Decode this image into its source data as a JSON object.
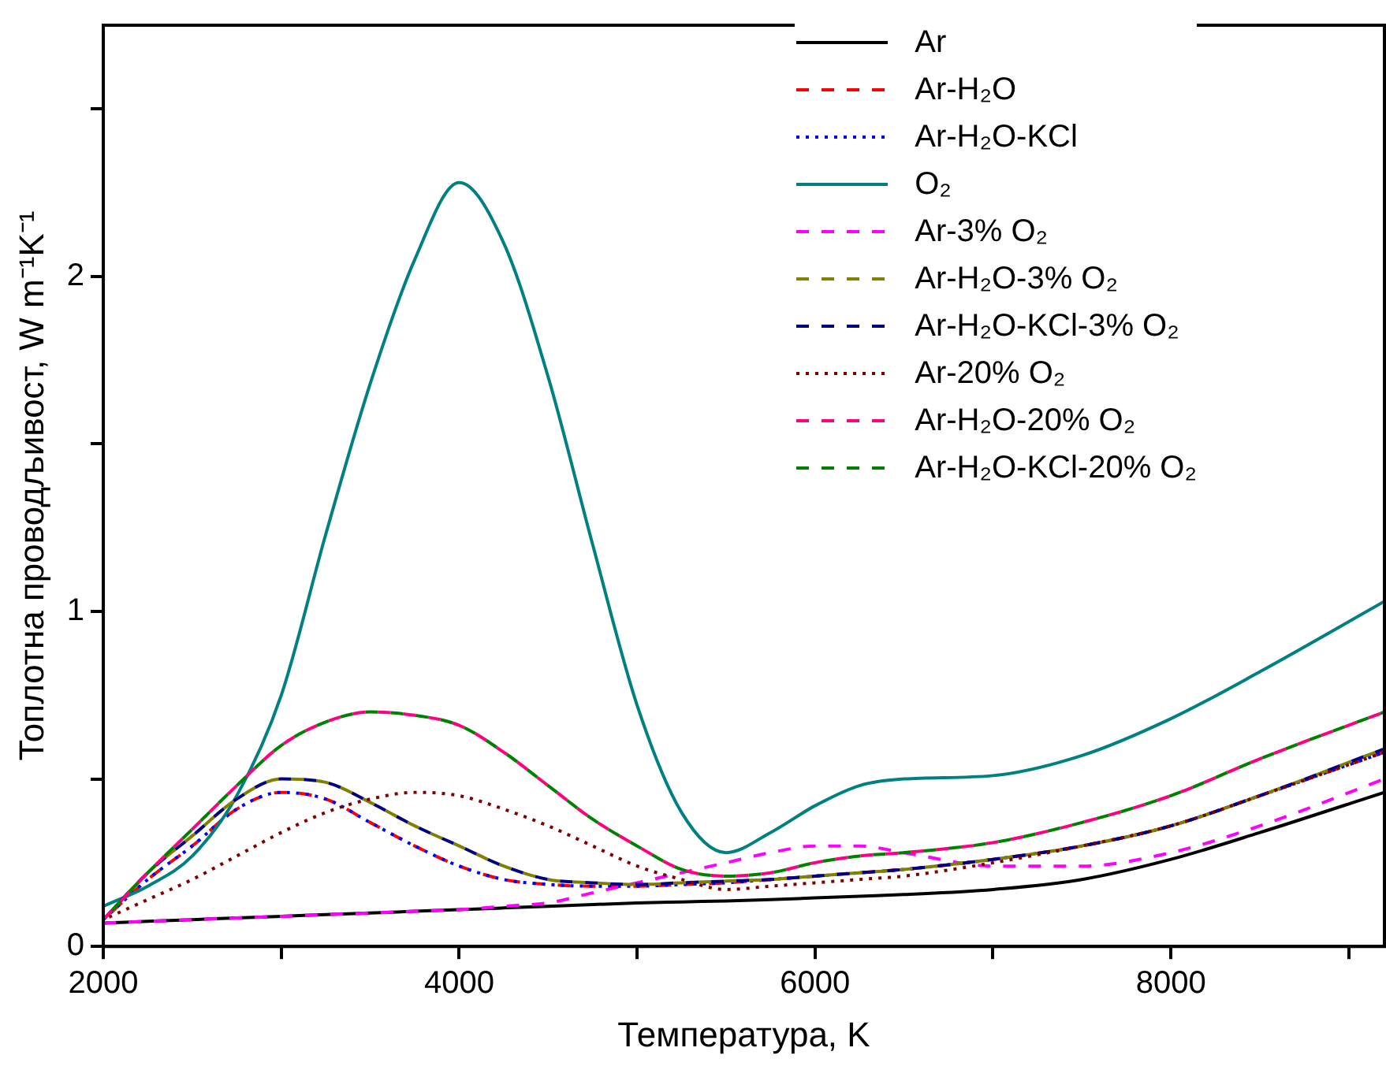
{
  "chart_data": {
    "type": "line",
    "xlabel": "Температура, K",
    "ylabel": "Топлотна проводљивост, W m⁻¹K⁻¹",
    "xlim": [
      2000,
      9200
    ],
    "ylim": [
      0,
      2.75
    ],
    "xticks": [
      2000,
      {
        "value": 3000,
        "label": null
      },
      4000,
      {
        "value": 5000,
        "label": null
      },
      6000,
      {
        "value": 7000,
        "label": null
      },
      8000,
      {
        "value": 9000,
        "label": null
      }
    ],
    "yticks": [
      0,
      {
        "value": 0.5,
        "label": null
      },
      1,
      {
        "value": 1.5,
        "label": null
      },
      2,
      {
        "value": 2.5,
        "label": null
      }
    ],
    "grid": false,
    "legend": "top right",
    "marker": "none",
    "x": [
      2000,
      2250,
      2500,
      2750,
      3000,
      3250,
      3500,
      3750,
      4000,
      4250,
      4500,
      4750,
      5000,
      5250,
      5500,
      5750,
      6000,
      6250,
      6500,
      7000,
      7500,
      8000,
      8500,
      9200
    ],
    "series": [
      {
        "name": "Ar",
        "color": "#000000",
        "line_style": "solid",
        "values": [
          0.07,
          0.075,
          0.08,
          0.085,
          0.09,
          0.095,
          0.1,
          0.105,
          0.11,
          0.115,
          0.12,
          0.125,
          0.13,
          0.133,
          0.136,
          0.14,
          0.145,
          0.15,
          0.155,
          0.17,
          0.2,
          0.26,
          0.34,
          0.46
        ]
      },
      {
        "name": "Ar-H₂O",
        "color": "#ff0000",
        "line_style": "dashed",
        "values": [
          0.08,
          0.2,
          0.3,
          0.41,
          0.46,
          0.44,
          0.37,
          0.3,
          0.24,
          0.2,
          0.185,
          0.18,
          0.18,
          0.185,
          0.19,
          0.2,
          0.21,
          0.22,
          0.23,
          0.26,
          0.3,
          0.36,
          0.45,
          0.58
        ]
      },
      {
        "name": "Ar-H₂O-KCl",
        "color": "#0000ff",
        "line_style": "dotted",
        "values": [
          0.08,
          0.2,
          0.3,
          0.41,
          0.46,
          0.44,
          0.37,
          0.3,
          0.24,
          0.2,
          0.185,
          0.18,
          0.18,
          0.185,
          0.19,
          0.2,
          0.21,
          0.22,
          0.23,
          0.26,
          0.3,
          0.36,
          0.45,
          0.58
        ]
      },
      {
        "name": "O₂",
        "color": "#008080",
        "line_style": "solid",
        "values": [
          0.12,
          0.18,
          0.27,
          0.45,
          0.75,
          1.23,
          1.68,
          2.05,
          2.28,
          2.1,
          1.7,
          1.2,
          0.72,
          0.4,
          0.28,
          0.34,
          0.42,
          0.48,
          0.5,
          0.51,
          0.57,
          0.68,
          0.82,
          1.03
        ]
      },
      {
        "name": "Ar-3% O₂",
        "color": "#ff00ff",
        "line_style": "dashed",
        "values": [
          0.07,
          0.075,
          0.08,
          0.085,
          0.09,
          0.095,
          0.1,
          0.105,
          0.11,
          0.12,
          0.13,
          0.16,
          0.19,
          0.22,
          0.25,
          0.28,
          0.3,
          0.3,
          0.28,
          0.24,
          0.24,
          0.28,
          0.36,
          0.5
        ]
      },
      {
        "name": "Ar-H₂O-3% O₂",
        "color": "#808000",
        "line_style": "dashed",
        "values": [
          0.08,
          0.22,
          0.33,
          0.44,
          0.5,
          0.49,
          0.43,
          0.36,
          0.3,
          0.24,
          0.2,
          0.19,
          0.185,
          0.19,
          0.195,
          0.2,
          0.21,
          0.22,
          0.23,
          0.26,
          0.3,
          0.36,
          0.45,
          0.59
        ]
      },
      {
        "name": "Ar-H₂O-KCl-3% O₂",
        "color": "#000080",
        "line_style": "dashed",
        "values": [
          0.08,
          0.22,
          0.33,
          0.44,
          0.5,
          0.49,
          0.43,
          0.36,
          0.3,
          0.24,
          0.2,
          0.19,
          0.185,
          0.19,
          0.195,
          0.2,
          0.21,
          0.22,
          0.23,
          0.26,
          0.3,
          0.36,
          0.45,
          0.59
        ]
      },
      {
        "name": "Ar-20% O₂",
        "color": "#800000",
        "line_style": "dotted",
        "values": [
          0.08,
          0.14,
          0.2,
          0.27,
          0.34,
          0.4,
          0.44,
          0.46,
          0.45,
          0.41,
          0.36,
          0.3,
          0.24,
          0.2,
          0.17,
          0.18,
          0.19,
          0.2,
          0.21,
          0.25,
          0.3,
          0.36,
          0.45,
          0.58
        ]
      },
      {
        "name": "Ar-H₂O-20% O₂",
        "color": "#ff0080",
        "line_style": "dashed",
        "values": [
          0.08,
          0.22,
          0.35,
          0.48,
          0.6,
          0.67,
          0.7,
          0.69,
          0.66,
          0.58,
          0.48,
          0.38,
          0.3,
          0.23,
          0.21,
          0.22,
          0.25,
          0.27,
          0.28,
          0.31,
          0.37,
          0.45,
          0.56,
          0.7
        ]
      },
      {
        "name": "Ar-H₂O-KCl-20% O₂",
        "color": "#008000",
        "line_style": "dashed",
        "values": [
          0.08,
          0.22,
          0.35,
          0.48,
          0.6,
          0.67,
          0.7,
          0.69,
          0.66,
          0.58,
          0.48,
          0.38,
          0.3,
          0.23,
          0.21,
          0.22,
          0.25,
          0.27,
          0.28,
          0.31,
          0.37,
          0.45,
          0.56,
          0.7
        ]
      }
    ]
  }
}
